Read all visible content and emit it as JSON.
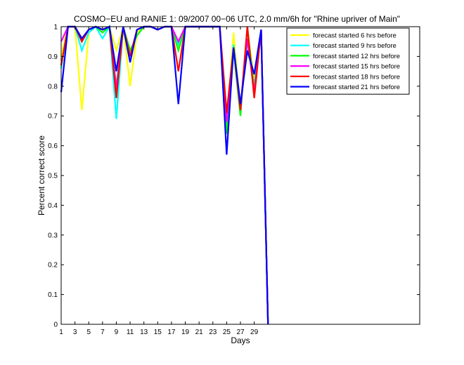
{
  "chart_data": {
    "type": "line",
    "title": "COSMO−EU and RANIE 1: 09/2007 00−06 UTC, 2.0 mm/6h for \"Rhine upriver of Main\"",
    "xlabel": "Days",
    "ylabel": "Percent correct score",
    "xlim": [
      1,
      53
    ],
    "ylim": [
      0,
      1
    ],
    "xticks": [
      1,
      3,
      5,
      7,
      9,
      11,
      13,
      15,
      17,
      19,
      21,
      23,
      25,
      27,
      29
    ],
    "yticks": [
      0,
      0.1,
      0.2,
      0.3,
      0.4,
      0.5,
      0.6,
      0.7,
      0.8,
      0.9,
      1
    ],
    "ytick_labels": [
      "0",
      "0.1",
      "0.2",
      "0.3",
      "0.4",
      "0.5",
      "0.6",
      "0.7",
      "0.8",
      "0.9",
      "1"
    ],
    "grid": false,
    "legend_position": "top-right",
    "x": [
      1,
      2,
      3,
      4,
      5,
      6,
      7,
      8,
      9,
      10,
      11,
      12,
      13,
      14,
      15,
      16,
      17,
      18,
      19,
      20,
      21,
      22,
      23,
      24,
      25,
      26,
      27,
      28,
      29,
      30,
      31
    ],
    "series": [
      {
        "name": "forecast started 6 hrs before",
        "color": "#ffff00",
        "values": [
          0.9,
          1.0,
          1.0,
          0.72,
          0.98,
          1.0,
          0.98,
          1.0,
          0.92,
          1.0,
          0.8,
          0.98,
          1.0,
          1.0,
          0.99,
          1.0,
          1.0,
          0.93,
          1.0,
          1.0,
          1.0,
          1.0,
          1.0,
          1.0,
          0.66,
          0.98,
          0.72,
          0.99,
          0.82,
          0.99,
          0.0
        ]
      },
      {
        "name": "forecast started 9 hrs before",
        "color": "#00ffff",
        "values": [
          0.86,
          1.0,
          1.0,
          0.92,
          0.98,
          1.0,
          0.96,
          1.0,
          0.69,
          1.0,
          0.9,
          0.99,
          1.0,
          1.0,
          0.99,
          1.0,
          1.0,
          0.94,
          1.0,
          1.0,
          1.0,
          1.0,
          1.0,
          1.0,
          0.66,
          0.94,
          0.73,
          0.95,
          0.8,
          0.99,
          0.0
        ]
      },
      {
        "name": "forecast started 12 hrs before",
        "color": "#00ff00",
        "values": [
          0.87,
          1.0,
          1.0,
          0.95,
          0.99,
          1.0,
          0.98,
          1.0,
          0.8,
          1.0,
          0.92,
          0.97,
          1.0,
          1.0,
          0.99,
          1.0,
          1.0,
          0.92,
          1.0,
          1.0,
          1.0,
          1.0,
          1.0,
          1.0,
          0.64,
          0.92,
          0.7,
          1.0,
          0.79,
          0.99,
          0.0
        ]
      },
      {
        "name": "forecast started 15 hrs before",
        "color": "#ff00ff",
        "values": [
          0.95,
          1.0,
          1.0,
          0.96,
          0.99,
          1.0,
          0.99,
          1.0,
          0.79,
          1.0,
          0.9,
          0.99,
          1.0,
          1.0,
          0.99,
          1.0,
          1.0,
          0.95,
          1.0,
          1.0,
          1.0,
          1.0,
          1.0,
          1.0,
          0.68,
          0.93,
          0.72,
          0.96,
          0.78,
          0.99,
          0.0
        ]
      },
      {
        "name": "forecast started 18 hrs before",
        "color": "#ff0000",
        "values": [
          0.87,
          1.0,
          1.0,
          0.95,
          0.99,
          1.0,
          0.99,
          1.0,
          0.76,
          1.0,
          0.9,
          0.99,
          1.0,
          1.0,
          0.99,
          1.0,
          1.0,
          0.85,
          1.0,
          1.0,
          1.0,
          1.0,
          1.0,
          1.0,
          0.71,
          0.93,
          0.72,
          1.0,
          0.76,
          0.99,
          0.0
        ]
      },
      {
        "name": "forecast started 21 hrs before",
        "color": "#0000ff",
        "values": [
          0.78,
          1.0,
          1.0,
          0.96,
          0.99,
          1.0,
          0.99,
          1.0,
          0.85,
          1.0,
          0.88,
          0.99,
          1.0,
          1.0,
          0.99,
          1.0,
          1.0,
          0.74,
          1.0,
          1.0,
          1.0,
          1.0,
          1.0,
          1.0,
          0.57,
          0.93,
          0.74,
          0.92,
          0.84,
          0.99,
          0.0
        ]
      }
    ]
  }
}
